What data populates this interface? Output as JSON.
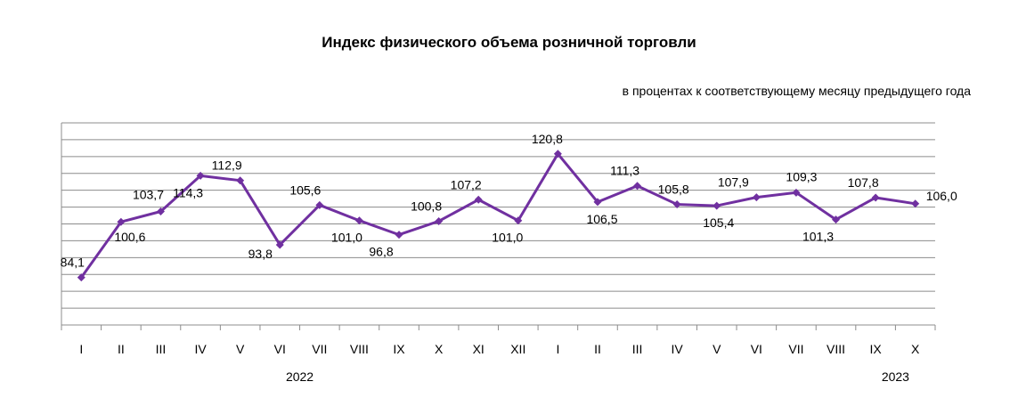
{
  "chart_data": {
    "type": "line",
    "title": "Индекс физического объема розничной торговли",
    "subtitle": "в процентах к соответствующему месяцу предыдущего года",
    "categories": [
      "I",
      "II",
      "III",
      "IV",
      "V",
      "VI",
      "VII",
      "VIII",
      "IX",
      "X",
      "XI",
      "XII",
      "I",
      "II",
      "III",
      "IV",
      "V",
      "VI",
      "VII",
      "VIII",
      "IX",
      "X"
    ],
    "year_labels": [
      {
        "label": "2022",
        "from_index": 0,
        "to_index": 11
      },
      {
        "label": "2023",
        "from_index": 12,
        "to_index": 21
      }
    ],
    "series": [
      {
        "name": "",
        "values": [
          84.1,
          100.6,
          103.7,
          114.3,
          112.9,
          93.8,
          105.6,
          101.0,
          96.8,
          100.8,
          107.2,
          101.0,
          120.8,
          106.5,
          111.3,
          105.8,
          105.4,
          107.9,
          109.3,
          101.3,
          107.8,
          106.0
        ],
        "labels": [
          "84,1",
          "100,6",
          "103,7",
          "114,3",
          "112,9",
          "93,8",
          "105,6",
          "101,0",
          "96,8",
          "100,8",
          "107,2",
          "101,0",
          "120,8",
          "106,5",
          "111,3",
          "105,8",
          "105,4",
          "107,9",
          "109,3",
          "101,3",
          "107,8",
          "106,0"
        ],
        "color": "#7030A0"
      }
    ],
    "ylim": [
      70,
      130
    ],
    "grid": true,
    "legend": "none",
    "colors": {
      "gridline": "#8c8c8c",
      "axis": "#8c8c8c",
      "text": "#000000"
    }
  }
}
